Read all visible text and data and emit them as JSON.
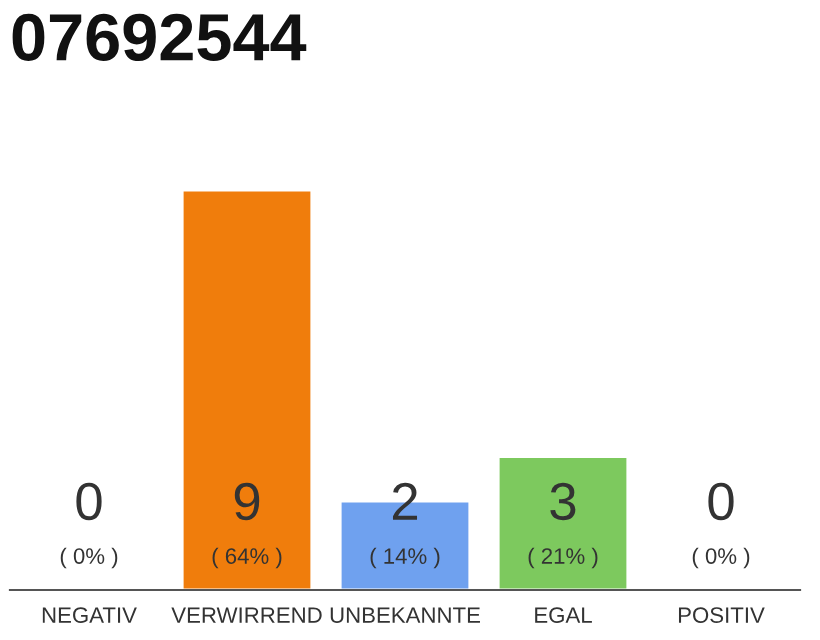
{
  "chart_data": {
    "type": "bar",
    "title": "07692544",
    "categories": [
      "NEGATIV",
      "VERWIRREND",
      "UNBEKANNTE",
      "EGAL",
      "POSITIV"
    ],
    "values": [
      0,
      9,
      2,
      3,
      0
    ],
    "colors": [
      null,
      "#f07d0c",
      "#6fa1ef",
      "#7dc95e",
      null
    ],
    "ylim": [
      0,
      9
    ],
    "tick_labels": "x",
    "data_labels": true,
    "grid": false,
    "legend": false,
    "annotations": [
      "( 0% )",
      "( 64% )",
      "( 14% )",
      "( 21% )",
      "( 0% )"
    ]
  }
}
